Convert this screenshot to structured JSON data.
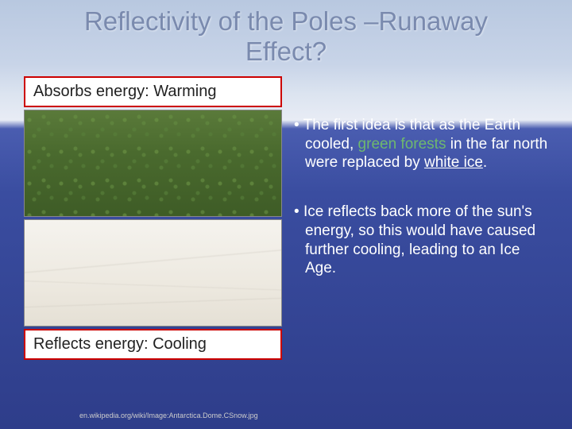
{
  "title_line1": "Reflectivity of the Poles –Runaway",
  "title_line2": "Effect?",
  "labels": {
    "absorbs": "Absorbs energy: Warming",
    "reflects": "Reflects energy: Cooling"
  },
  "bullets": {
    "b1_pre": "The first idea is that as the Earth cooled, ",
    "b1_green": "green forests ",
    "b1_mid": "in the far north were replaced by ",
    "b1_white": "white ice",
    "b1_post": ".",
    "b2": "Ice reflects back more of the sun's energy, so this would have caused further cooling, leading to an Ice Age."
  },
  "citation": "en.wikipedia.org/wiki/Image:Antarctica.Dome.CSnow.jpg",
  "colors": {
    "title_color": "#7a8aae",
    "border_red": "#cc0000",
    "green_text": "#6eb86e",
    "bg_sky_top": "#b8c8e0",
    "bg_deep": "#2e3d8a"
  }
}
